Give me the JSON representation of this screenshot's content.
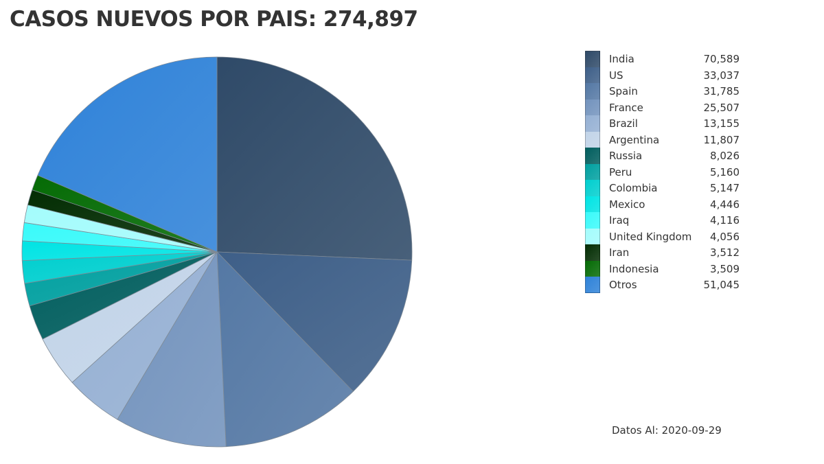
{
  "title": "CASOS NUEVOS POR PAIS: 274,897",
  "footnote": "Datos Al: 2020-09-29",
  "chart_data": {
    "type": "pie",
    "title": "CASOS NUEVOS POR PAIS: 274,897",
    "legend_position": "right",
    "slices": [
      {
        "label": "India",
        "value": 70589,
        "display": "70,589",
        "color": "#2f4a68"
      },
      {
        "label": "US",
        "value": 33037,
        "display": "33,037",
        "color": "#3e5f88"
      },
      {
        "label": "Spain",
        "value": 31785,
        "display": "31,785",
        "color": "#5478a4"
      },
      {
        "label": "France",
        "value": 25507,
        "display": "25,507",
        "color": "#7393bd"
      },
      {
        "label": "Brazil",
        "value": 13155,
        "display": "13,155",
        "color": "#95b0d3"
      },
      {
        "label": "Argentina",
        "value": 11807,
        "display": "11,807",
        "color": "#c2d4e8"
      },
      {
        "label": "Russia",
        "value": 8026,
        "display": "8,026",
        "color": "#015e5e"
      },
      {
        "label": "Peru",
        "value": 5160,
        "display": "5,160",
        "color": "#00a0a0"
      },
      {
        "label": "Colombia",
        "value": 5147,
        "display": "5,147",
        "color": "#00cfcf"
      },
      {
        "label": "Mexico",
        "value": 4446,
        "display": "4,446",
        "color": "#00e4e4"
      },
      {
        "label": "Iraq",
        "value": 4116,
        "display": "4,116",
        "color": "#3afafa"
      },
      {
        "label": "United Kingdom",
        "value": 4056,
        "display": "4,056",
        "color": "#a4fcfc"
      },
      {
        "label": "Iran",
        "value": 3512,
        "display": "3,512",
        "color": "#032d03"
      },
      {
        "label": "Indonesia",
        "value": 3509,
        "display": "3,509",
        "color": "#056b05"
      },
      {
        "label": "Otros",
        "value": 51045,
        "display": "51,045",
        "color": "#2f82d8"
      }
    ]
  }
}
